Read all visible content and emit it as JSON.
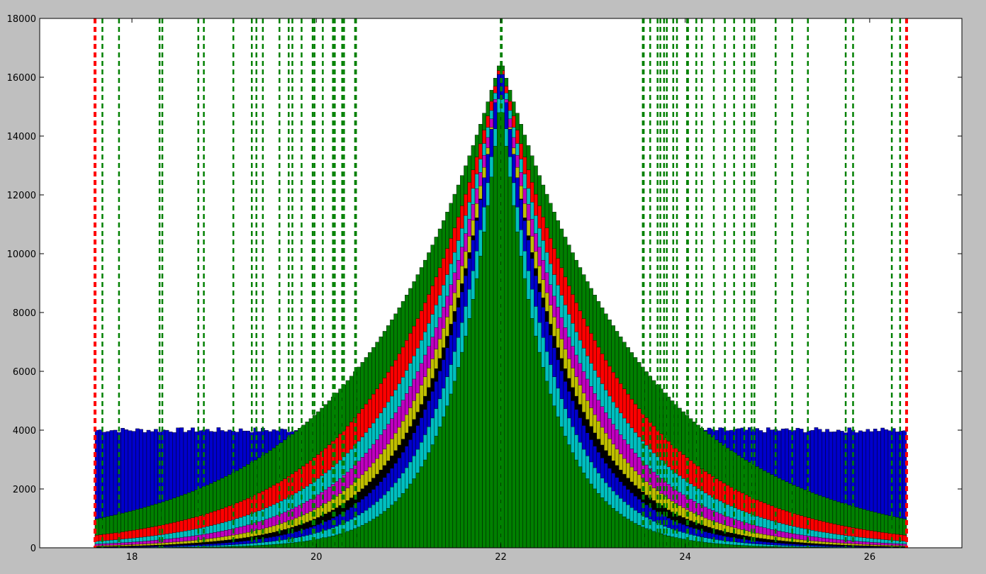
{
  "chart_data": {
    "type": "bar",
    "title": "",
    "xlabel": "",
    "ylabel": "",
    "xlim": [
      17,
      27
    ],
    "ylim": [
      0,
      18000
    ],
    "x_ticks": [
      18,
      20,
      22,
      24,
      26
    ],
    "y_ticks": [
      0,
      2000,
      4000,
      6000,
      8000,
      10000,
      12000,
      14000,
      16000,
      18000
    ],
    "x_tick_labels": [
      "18",
      "20",
      "22",
      "24",
      "26"
    ],
    "y_tick_labels": [
      "0",
      "2000",
      "4000",
      "6000",
      "8000",
      "10000",
      "12000",
      "14000",
      "16000",
      "18000"
    ],
    "grid": false,
    "center": 22.0,
    "bin_width": 0.04,
    "x_range": [
      17.6,
      26.4
    ],
    "overlaid_histograms": [
      {
        "color": "#0000cc",
        "shape": "uniform",
        "level": 4000
      },
      {
        "color": "#008000",
        "shape": "peaked",
        "peak": 16600,
        "scale": 1.55
      },
      {
        "color": "#ff0000",
        "shape": "peaked",
        "peak": 16500,
        "scale": 1.2
      },
      {
        "color": "#00bfbf",
        "shape": "peaked",
        "peak": 16400,
        "scale": 1.02
      },
      {
        "color": "#bf00bf",
        "shape": "peaked",
        "peak": 16300,
        "scale": 0.9
      },
      {
        "color": "#bfbf00",
        "shape": "peaked",
        "peak": 16200,
        "scale": 0.8
      },
      {
        "color": "#000000",
        "shape": "peaked",
        "peak": 16100,
        "scale": 0.72
      },
      {
        "color": "#0000cc",
        "shape": "peaked",
        "peak": 16600,
        "scale": 0.65
      },
      {
        "color": "#00bfbf",
        "shape": "peaked",
        "peak": 15800,
        "scale": 0.58
      },
      {
        "color": "#008000",
        "shape": "peaked",
        "peak": 15400,
        "scale": 0.5
      }
    ],
    "vertical_lines": {
      "red": [
        17.6,
        26.4
      ],
      "green": [
        17.68,
        17.86,
        18.3,
        18.33,
        18.72,
        18.78,
        19.1,
        19.3,
        19.35,
        19.42,
        19.6,
        19.7,
        19.74,
        19.84,
        19.96,
        19.98,
        20.07,
        20.18,
        20.2,
        20.28,
        20.3,
        20.42,
        20.43,
        22.0,
        22.01,
        23.54,
        23.55,
        23.62,
        23.7,
        23.73,
        23.77,
        23.8,
        23.87,
        23.91,
        24.02,
        24.03,
        24.12,
        24.18,
        24.31,
        24.43,
        24.53,
        24.64,
        24.72,
        24.75,
        24.98,
        25.16,
        25.33,
        25.74,
        25.82,
        26.24,
        26.33
      ]
    }
  }
}
